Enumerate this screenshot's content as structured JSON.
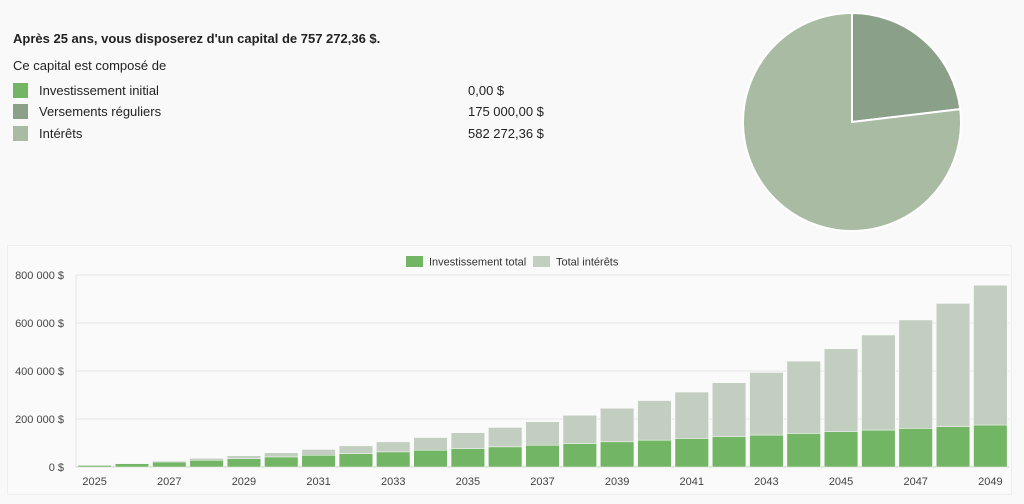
{
  "summary": {
    "headline": "Après 25 ans, vous disposerez d'un capital de 757 272,36 $.",
    "composition_label": "Ce capital est composé de",
    "items": [
      {
        "label": "Investissement initial",
        "value": "0,00 $",
        "color": "#72b564"
      },
      {
        "label": "Versements réguliers",
        "value": "175 000,00 $",
        "color": "#8aa088"
      },
      {
        "label": "Intérêts",
        "value": "582 272,36 $",
        "color": "#a9bca3"
      }
    ]
  },
  "pie": {
    "values": [
      0,
      175000,
      582272.36
    ],
    "colors": [
      "#72b564",
      "#8aa088",
      "#a9bca3"
    ]
  },
  "chart_data": {
    "type": "bar",
    "stacked": true,
    "categories": [
      "2025",
      "2026",
      "2027",
      "2028",
      "2029",
      "2030",
      "2031",
      "2032",
      "2033",
      "2034",
      "2035",
      "2036",
      "2037",
      "2038",
      "2039",
      "2040",
      "2041",
      "2042",
      "2043",
      "2044",
      "2045",
      "2046",
      "2047",
      "2048",
      "2049"
    ],
    "tick_labels": [
      "2025",
      "2027",
      "2029",
      "2031",
      "2033",
      "2035",
      "2037",
      "2039",
      "2041",
      "2043",
      "2045",
      "2047",
      "2049"
    ],
    "series": [
      {
        "name": "Investissement total",
        "color": "#72b564",
        "values": [
          7000,
          14000,
          21000,
          28000,
          35000,
          42000,
          49000,
          56000,
          63000,
          70000,
          77000,
          84000,
          91000,
          98000,
          105000,
          112000,
          119000,
          126000,
          133000,
          140000,
          147000,
          154000,
          161000,
          168000,
          175000
        ]
      },
      {
        "name": "Total intérêts",
        "color": "#c2cec0",
        "values": [
          700,
          2170,
          4487,
          7736,
          12010,
          17411,
          24052,
          32057,
          41563,
          52719,
          65691,
          80660,
          97826,
          117408,
          139649,
          164814,
          193196,
          225115,
          260927,
          301019,
          345821,
          395803,
          451484,
          513432,
          582272
        ]
      }
    ],
    "y_ticks": [
      "0 $",
      "200 000 $",
      "400 000 $",
      "600 000 $",
      "800 000 $"
    ],
    "y_tick_values": [
      0,
      200000,
      400000,
      600000,
      800000
    ],
    "ylim": [
      0,
      800000
    ],
    "legend": "top-center",
    "grid": true
  }
}
